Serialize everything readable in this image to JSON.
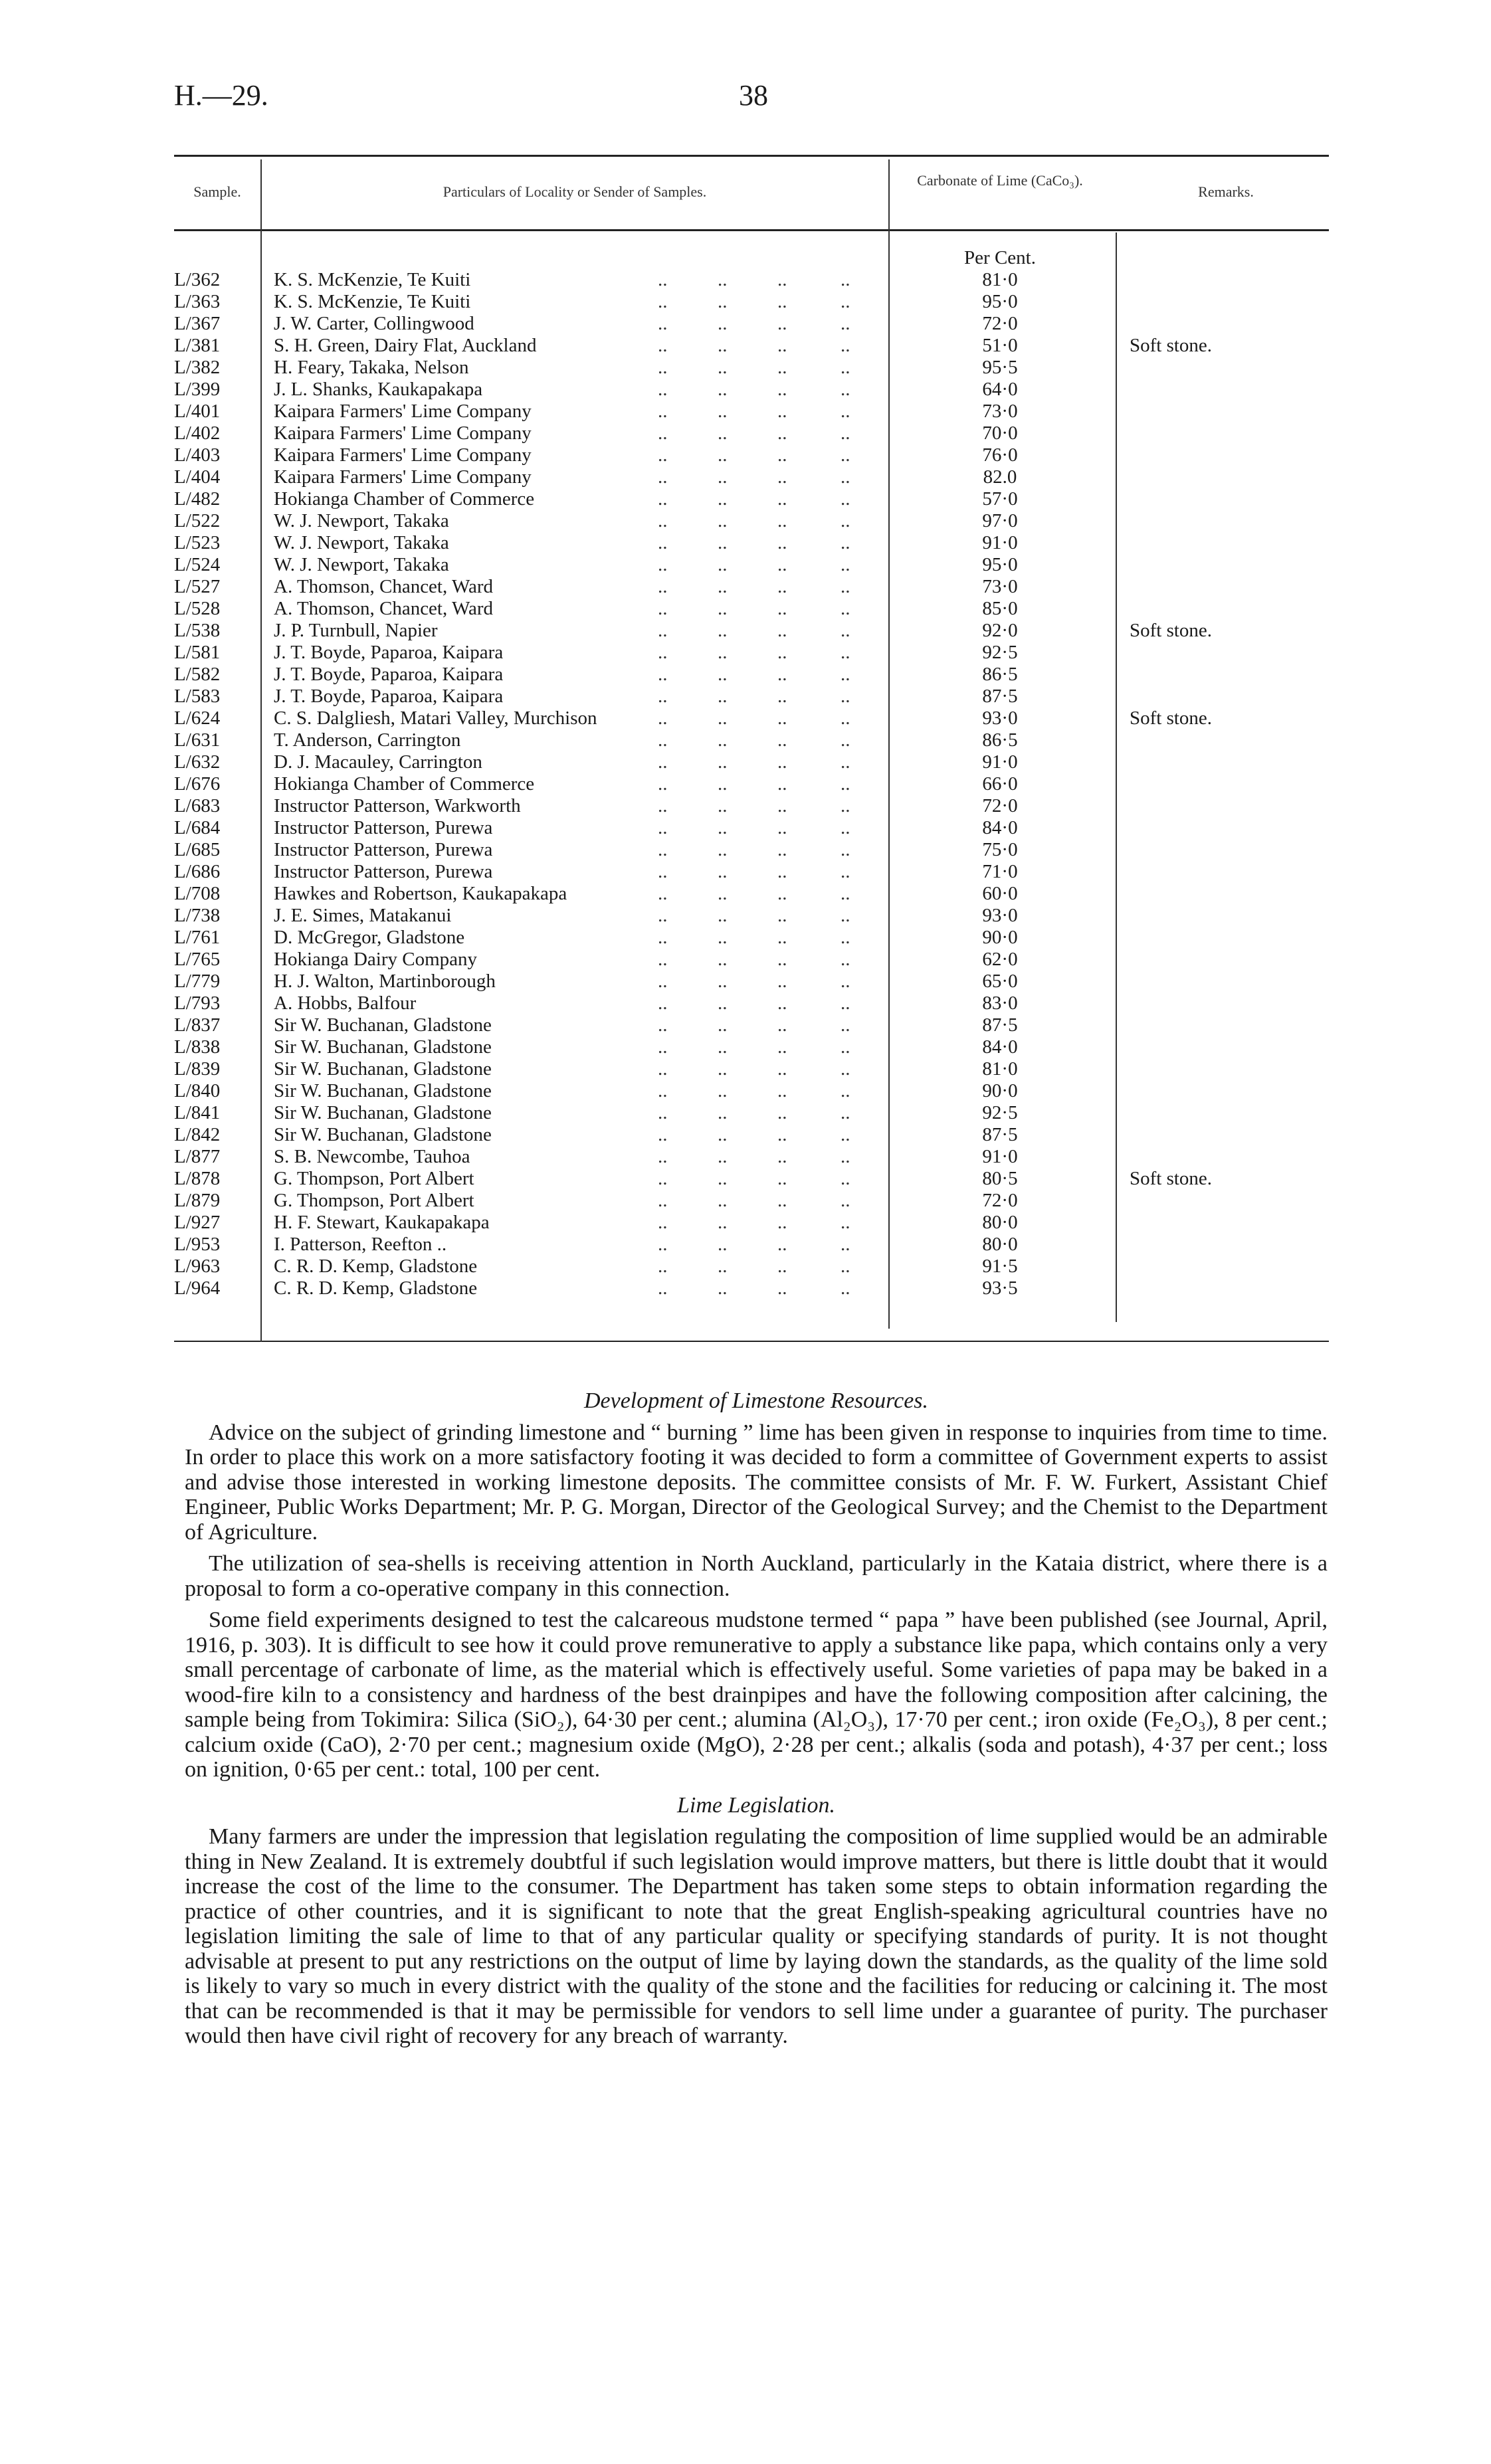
{
  "header": {
    "reference": "H.—29.",
    "page_number": "38"
  },
  "table": {
    "columns": [
      "Sample.",
      "Particulars of Locality or Sender of Samples.",
      "Carbonate of Lime (CaCo₃).",
      "Remarks."
    ],
    "unit": "Per Cent.",
    "rows": [
      {
        "sample": "L/362",
        "particulars": "K. S. McKenzie, Te Kuiti",
        "value": "81·0",
        "remarks": ""
      },
      {
        "sample": "L/363",
        "particulars": "K. S. McKenzie, Te Kuiti",
        "value": "95·0",
        "remarks": ""
      },
      {
        "sample": "L/367",
        "particulars": "J. W. Carter, Collingwood",
        "value": "72·0",
        "remarks": ""
      },
      {
        "sample": "L/381",
        "particulars": "S. H. Green, Dairy Flat, Auckland",
        "value": "51·0",
        "remarks": "Soft stone."
      },
      {
        "sample": "L/382",
        "particulars": "H. Feary, Takaka, Nelson",
        "value": "95·5",
        "remarks": ""
      },
      {
        "sample": "L/399",
        "particulars": "J. L. Shanks, Kaukapakapa",
        "value": "64·0",
        "remarks": ""
      },
      {
        "sample": "L/401",
        "particulars": "Kaipara Farmers' Lime Company",
        "value": "73·0",
        "remarks": ""
      },
      {
        "sample": "L/402",
        "particulars": "Kaipara Farmers' Lime Company",
        "value": "70·0",
        "remarks": ""
      },
      {
        "sample": "L/403",
        "particulars": "Kaipara Farmers' Lime Company",
        "value": "76·0",
        "remarks": ""
      },
      {
        "sample": "L/404",
        "particulars": "Kaipara Farmers' Lime Company",
        "value": "82.0",
        "remarks": ""
      },
      {
        "sample": "L/482",
        "particulars": "Hokianga Chamber of Commerce",
        "value": "57·0",
        "remarks": ""
      },
      {
        "sample": "L/522",
        "particulars": "W. J. Newport, Takaka",
        "value": "97·0",
        "remarks": ""
      },
      {
        "sample": "L/523",
        "particulars": "W. J. Newport, Takaka",
        "value": "91·0",
        "remarks": ""
      },
      {
        "sample": "L/524",
        "particulars": "W. J. Newport, Takaka",
        "value": "95·0",
        "remarks": ""
      },
      {
        "sample": "L/527",
        "particulars": "A. Thomson, Chancet, Ward",
        "value": "73·0",
        "remarks": ""
      },
      {
        "sample": "L/528",
        "particulars": "A. Thomson, Chancet, Ward",
        "value": "85·0",
        "remarks": ""
      },
      {
        "sample": "L/538",
        "particulars": "J. P. Turnbull, Napier",
        "value": "92·0",
        "remarks": "Soft stone."
      },
      {
        "sample": "L/581",
        "particulars": "J. T. Boyde, Paparoa, Kaipara",
        "value": "92·5",
        "remarks": ""
      },
      {
        "sample": "L/582",
        "particulars": "J. T. Boyde, Paparoa, Kaipara",
        "value": "86·5",
        "remarks": ""
      },
      {
        "sample": "L/583",
        "particulars": "J. T. Boyde, Paparoa, Kaipara",
        "value": "87·5",
        "remarks": ""
      },
      {
        "sample": "L/624",
        "particulars": "C. S. Dalgliesh, Matari Valley, Murchison",
        "value": "93·0",
        "remarks": "Soft stone."
      },
      {
        "sample": "L/631",
        "particulars": "T. Anderson, Carrington",
        "value": "86·5",
        "remarks": ""
      },
      {
        "sample": "L/632",
        "particulars": "D. J. Macauley, Carrington",
        "value": "91·0",
        "remarks": ""
      },
      {
        "sample": "L/676",
        "particulars": "Hokianga Chamber of Commerce",
        "value": "66·0",
        "remarks": ""
      },
      {
        "sample": "L/683",
        "particulars": "Instructor Patterson, Warkworth",
        "value": "72·0",
        "remarks": ""
      },
      {
        "sample": "L/684",
        "particulars": "Instructor Patterson, Purewa",
        "value": "84·0",
        "remarks": ""
      },
      {
        "sample": "L/685",
        "particulars": "Instructor Patterson, Purewa",
        "value": "75·0",
        "remarks": ""
      },
      {
        "sample": "L/686",
        "particulars": "Instructor Patterson, Purewa",
        "value": "71·0",
        "remarks": ""
      },
      {
        "sample": "L/708",
        "particulars": "Hawkes and Robertson, Kaukapakapa",
        "value": "60·0",
        "remarks": ""
      },
      {
        "sample": "L/738",
        "particulars": "J. E. Simes, Matakanui",
        "value": "93·0",
        "remarks": ""
      },
      {
        "sample": "L/761",
        "particulars": "D. McGregor, Gladstone",
        "value": "90·0",
        "remarks": ""
      },
      {
        "sample": "L/765",
        "particulars": "Hokianga Dairy Company",
        "value": "62·0",
        "remarks": ""
      },
      {
        "sample": "L/779",
        "particulars": "H. J. Walton, Martinborough",
        "value": "65·0",
        "remarks": ""
      },
      {
        "sample": "L/793",
        "particulars": "A. Hobbs, Balfour",
        "value": "83·0",
        "remarks": ""
      },
      {
        "sample": "L/837",
        "particulars": "Sir W. Buchanan, Gladstone",
        "value": "87·5",
        "remarks": ""
      },
      {
        "sample": "L/838",
        "particulars": "Sir W. Buchanan, Gladstone",
        "value": "84·0",
        "remarks": ""
      },
      {
        "sample": "L/839",
        "particulars": "Sir W. Buchanan, Gladstone",
        "value": "81·0",
        "remarks": ""
      },
      {
        "sample": "L/840",
        "particulars": "Sir W. Buchanan, Gladstone",
        "value": "90·0",
        "remarks": ""
      },
      {
        "sample": "L/841",
        "particulars": "Sir W. Buchanan, Gladstone",
        "value": "92·5",
        "remarks": ""
      },
      {
        "sample": "L/842",
        "particulars": "Sir W. Buchanan, Gladstone",
        "value": "87·5",
        "remarks": ""
      },
      {
        "sample": "L/877",
        "particulars": "S. B. Newcombe, Tauhoa",
        "value": "91·0",
        "remarks": ""
      },
      {
        "sample": "L/878",
        "particulars": "G. Thompson, Port Albert",
        "value": "80·5",
        "remarks": "Soft stone."
      },
      {
        "sample": "L/879",
        "particulars": "G. Thompson, Port Albert",
        "value": "72·0",
        "remarks": ""
      },
      {
        "sample": "L/927",
        "particulars": "H. F. Stewart, Kaukapakapa",
        "value": "80·0",
        "remarks": ""
      },
      {
        "sample": "L/953",
        "particulars": "I. Patterson, Reefton ..",
        "value": "80·0",
        "remarks": ""
      },
      {
        "sample": "L/963",
        "particulars": "C. R. D. Kemp, Gladstone",
        "value": "91·5",
        "remarks": ""
      },
      {
        "sample": "L/964",
        "particulars": "C. R. D. Kemp, Gladstone",
        "value": "93·5",
        "remarks": ""
      }
    ]
  },
  "sections": [
    {
      "heading": "Development of Limestone Resources.",
      "paragraphs": [
        "Advice on the subject of grinding limestone and “ burning ” lime has been given in response to inquiries from time to time. In order to place this work on a more satisfactory footing it was decided to form a committee of Government experts to assist and advise those interested in working limestone deposits. The committee consists of Mr. F. W. Furkert, Assistant Chief Engineer, Public Works Department; Mr. P. G. Morgan, Director of the Geological Survey; and the Chemist to the Department of Agriculture.",
        "The utilization of sea-shells is receiving attention in North Auckland, particularly in the Kataia district, where there is a proposal to form a co-operative company in this connection.",
        "Some field experiments designed to test the calcareous mudstone termed “ papa ” have been published (see Journal, April, 1916, p. 303). It is difficult to see how it could prove remunerative to apply a substance like papa, which contains only a very small percentage of carbonate of lime, as the material which is effectively useful. Some varieties of papa may be baked in a wood-fire kiln to a consistency and hardness of the best drainpipes and have the following composition after calcining, the sample being from Tokimira: Silica (SiO₂), 64·30 per cent.; alumina (Al₂O₃), 17·70 per cent.; iron oxide (Fe₂O₃), 8 per cent.; calcium oxide (CaO), 2·70 per cent.; magnesium oxide (MgO), 2·28 per cent.; alkalis (soda and potash), 4·37 per cent.; loss on ignition, 0·65 per cent.: total, 100 per cent."
      ]
    },
    {
      "heading": "Lime Legislation.",
      "paragraphs": [
        "Many farmers are under the impression that legislation regulating the composition of lime supplied would be an admirable thing in New Zealand. It is extremely doubtful if such legislation would improve matters, but there is little doubt that it would increase the cost of the lime to the consumer. The Department has taken some steps to obtain information regarding the practice of other countries, and it is significant to note that the great English-speaking agricultural countries have no legislation limiting the sale of lime to that of any particular quality or specifying standards of purity. It is not thought advisable at present to put any restrictions on the output of lime by laying down the standards, as the quality of the lime sold is likely to vary so much in every district with the quality of the stone and the facilities for reducing or calcining it. The most that can be recommended is that it may be permissible for vendors to sell lime under a guarantee of purity. The purchaser would then have civil right of recovery for any breach of warranty."
      ]
    }
  ]
}
